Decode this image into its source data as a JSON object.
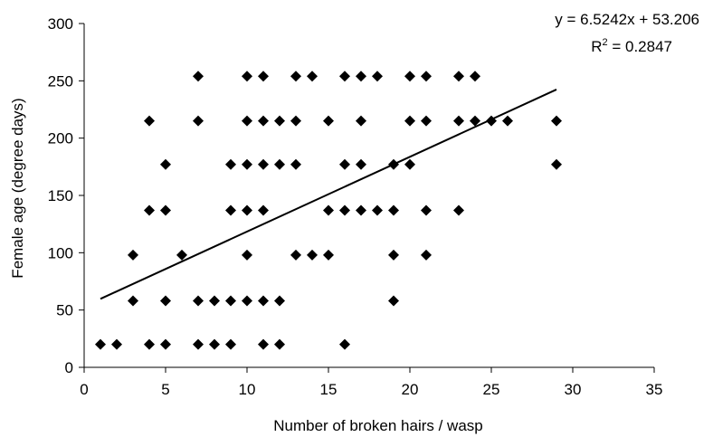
{
  "chart_data": {
    "type": "scatter",
    "title": "",
    "xlabel": "Number of broken hairs / wasp",
    "ylabel": "Female age (degree days)",
    "xlim": [
      0,
      35
    ],
    "ylim": [
      0,
      300
    ],
    "x_ticks": [
      0,
      5,
      10,
      15,
      20,
      25,
      30,
      35
    ],
    "y_ticks": [
      0,
      50,
      100,
      150,
      200,
      250,
      300
    ],
    "grid": false,
    "legend": "none",
    "marker": "diamond",
    "marker_color": "#000000",
    "points": [
      [
        1,
        20
      ],
      [
        2,
        20
      ],
      [
        4,
        20
      ],
      [
        5,
        20
      ],
      [
        7,
        20
      ],
      [
        8,
        20
      ],
      [
        9,
        20
      ],
      [
        11,
        20
      ],
      [
        12,
        20
      ],
      [
        16,
        20
      ],
      [
        3,
        58
      ],
      [
        5,
        58
      ],
      [
        7,
        58
      ],
      [
        8,
        58
      ],
      [
        9,
        58
      ],
      [
        10,
        58
      ],
      [
        11,
        58
      ],
      [
        12,
        58
      ],
      [
        19,
        58
      ],
      [
        3,
        98
      ],
      [
        6,
        98
      ],
      [
        10,
        98
      ],
      [
        13,
        98
      ],
      [
        14,
        98
      ],
      [
        15,
        98
      ],
      [
        19,
        98
      ],
      [
        21,
        98
      ],
      [
        4,
        137
      ],
      [
        5,
        137
      ],
      [
        9,
        137
      ],
      [
        10,
        137
      ],
      [
        11,
        137
      ],
      [
        15,
        137
      ],
      [
        16,
        137
      ],
      [
        17,
        137
      ],
      [
        18,
        137
      ],
      [
        19,
        137
      ],
      [
        21,
        137
      ],
      [
        23,
        137
      ],
      [
        5,
        177
      ],
      [
        9,
        177
      ],
      [
        10,
        177
      ],
      [
        11,
        177
      ],
      [
        12,
        177
      ],
      [
        13,
        177
      ],
      [
        16,
        177
      ],
      [
        17,
        177
      ],
      [
        19,
        177
      ],
      [
        20,
        177
      ],
      [
        29,
        177
      ],
      [
        4,
        215
      ],
      [
        7,
        215
      ],
      [
        10,
        215
      ],
      [
        11,
        215
      ],
      [
        12,
        215
      ],
      [
        13,
        215
      ],
      [
        15,
        215
      ],
      [
        17,
        215
      ],
      [
        20,
        215
      ],
      [
        21,
        215
      ],
      [
        23,
        215
      ],
      [
        24,
        215
      ],
      [
        25,
        215
      ],
      [
        26,
        215
      ],
      [
        29,
        215
      ],
      [
        7,
        254
      ],
      [
        10,
        254
      ],
      [
        11,
        254
      ],
      [
        13,
        254
      ],
      [
        14,
        254
      ],
      [
        16,
        254
      ],
      [
        17,
        254
      ],
      [
        18,
        254
      ],
      [
        20,
        254
      ],
      [
        21,
        254
      ],
      [
        23,
        254
      ],
      [
        24,
        254
      ]
    ],
    "trendline": {
      "type": "linear",
      "slope": 6.5242,
      "intercept": 53.206,
      "x_range": [
        1,
        29
      ],
      "equation": "y = 6.5242x + 53.206",
      "r2_prefix": "R",
      "r2_exponent": "2",
      "r2_value": " = 0.2847"
    }
  }
}
